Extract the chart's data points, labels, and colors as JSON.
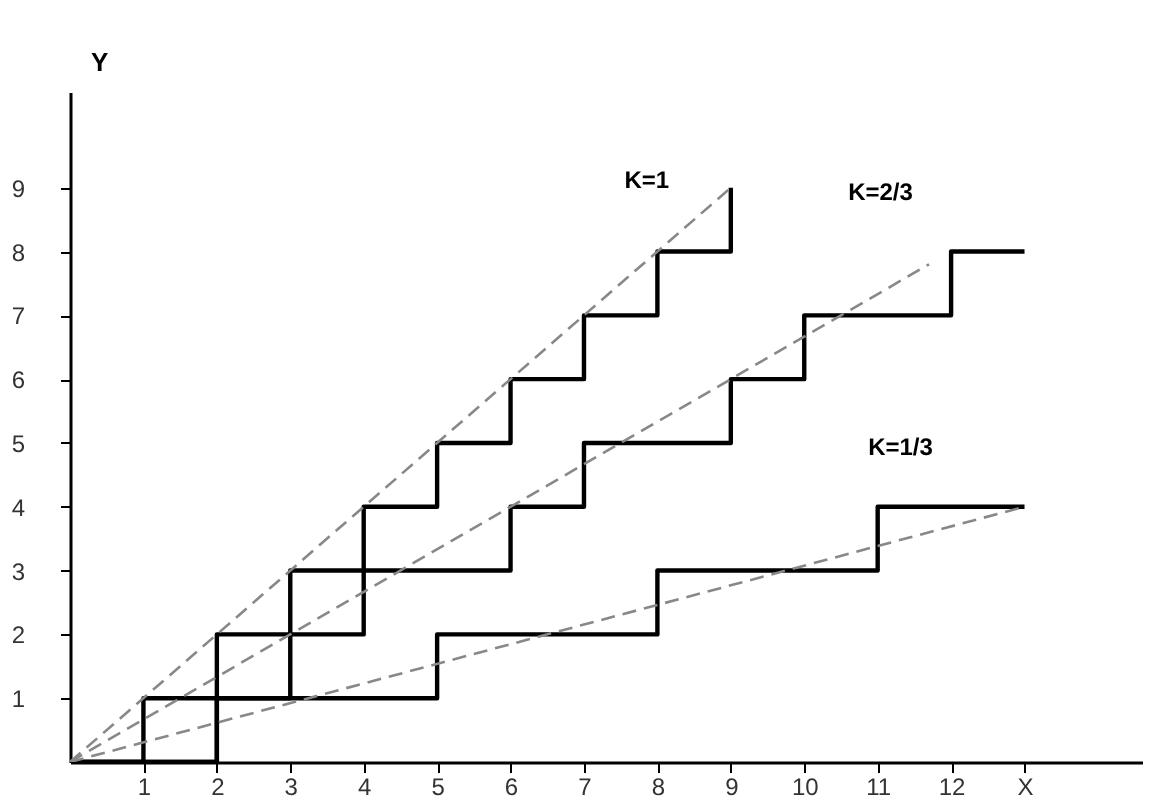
{
  "chart_data": {
    "type": "step",
    "xlabel": null,
    "ylabel": "Y",
    "series": [
      {
        "type": "step",
        "name": "K=1",
        "color": "#000000",
        "line_style": "solid",
        "x": [
          0,
          1,
          2,
          3,
          4,
          5,
          6,
          7,
          8,
          9
        ],
        "values": [
          0,
          1,
          2,
          3,
          4,
          5,
          6,
          7,
          8,
          9
        ]
      },
      {
        "type": "step",
        "name": "K=2/3",
        "color": "#000000",
        "line_style": "solid",
        "x": [
          0,
          2,
          3,
          4,
          6,
          7,
          9,
          10,
          12,
          13
        ],
        "values": [
          0,
          1,
          2,
          3,
          4,
          5,
          6,
          7,
          8,
          8
        ]
      },
      {
        "type": "step",
        "name": "K=1/3",
        "color": "#000000",
        "line_style": "solid",
        "x": [
          0,
          2,
          5,
          8,
          11,
          13
        ],
        "values": [
          0,
          1,
          2,
          3,
          4,
          4
        ]
      },
      {
        "type": "line",
        "color": "#888888",
        "line_style": "dashed",
        "x": [
          0,
          9
        ],
        "values": [
          0,
          9
        ]
      },
      {
        "type": "line",
        "color": "#888888",
        "line_style": "dashed",
        "x": [
          0,
          11.7
        ],
        "values": [
          0,
          7.8
        ]
      },
      {
        "type": "line",
        "color": "#888888",
        "line_style": "dashed",
        "x": [
          0,
          13
        ],
        "values": [
          0,
          4
        ]
      }
    ],
    "xlim": [
      0,
      14.6
    ],
    "ylim": [
      0,
      10.5
    ],
    "xticks": [
      1,
      2,
      3,
      4,
      5,
      6,
      7,
      8,
      9,
      10,
      11,
      12,
      {
        "value": 13,
        "label": "X"
      }
    ],
    "yticks": [
      1,
      2,
      3,
      4,
      5,
      6,
      7,
      8,
      9
    ],
    "grid": false,
    "legend": false
  }
}
